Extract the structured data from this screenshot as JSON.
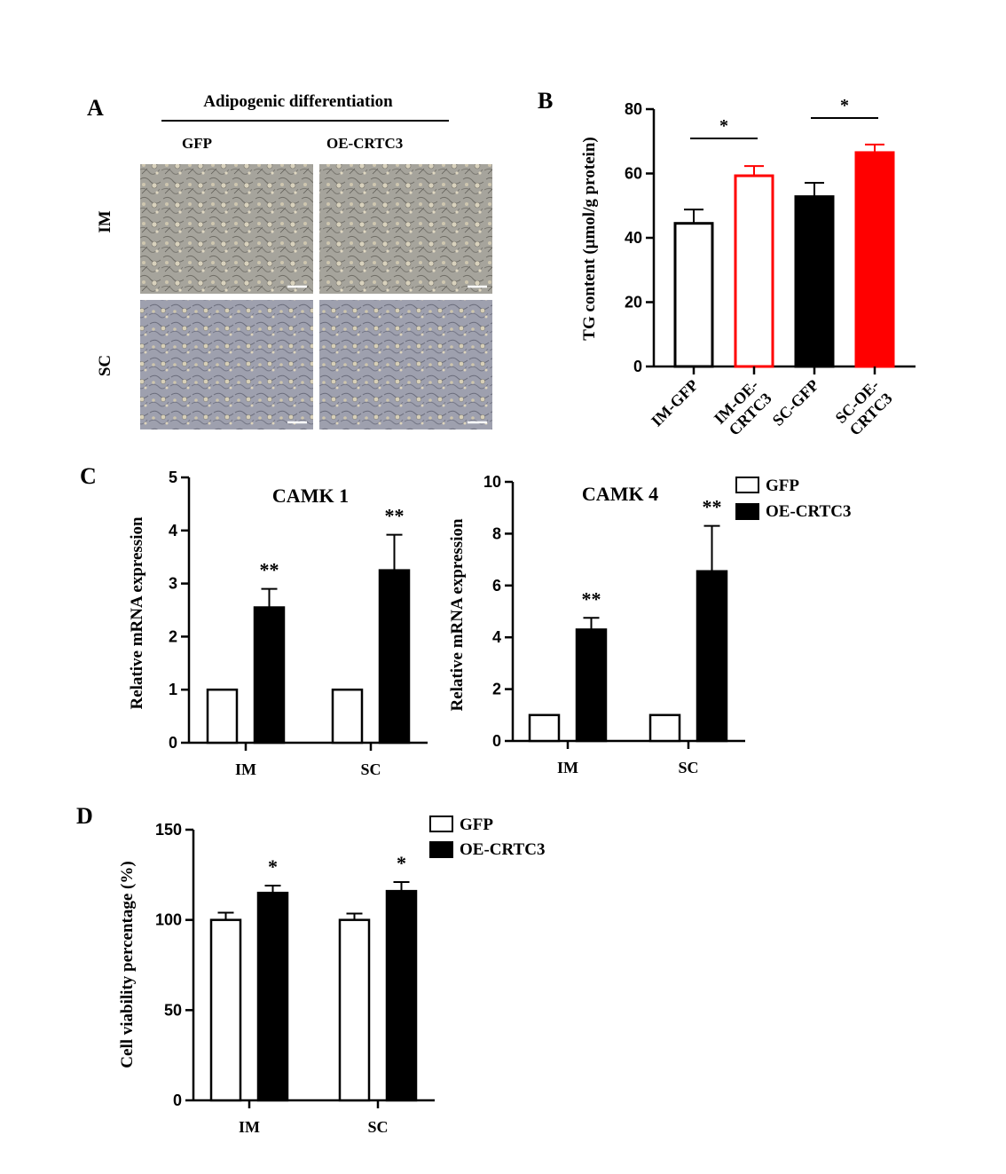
{
  "panel_labels": [
    "A",
    "B",
    "C",
    "D"
  ],
  "panel_a": {
    "header": "Adipogenic differentiation",
    "columns": [
      "GFP",
      "OE-CRTC3"
    ],
    "rows": [
      "IM",
      "SC"
    ]
  },
  "colors": {
    "black": "#000000",
    "red": "#ff0000",
    "micro_base": "#a9a79f",
    "micro_blue": "#9598aa"
  },
  "chart_data": [
    {
      "id": "B",
      "type": "bar",
      "categories": [
        "IM-GFP",
        "IM-OE-CRTC3",
        "SC-GFP",
        "SC-OE-CRTC3"
      ],
      "category_lines": [
        [
          "IM-GFP"
        ],
        [
          "IM-OE-",
          "CRTC3"
        ],
        [
          "SC-GFP"
        ],
        [
          "SC-OE-",
          "CRTC3"
        ]
      ],
      "values": [
        44.5,
        59.3,
        52.8,
        66.5
      ],
      "errors": [
        4.3,
        3.0,
        4.3,
        2.5
      ],
      "bar_styles": [
        "black-outline",
        "red-outline",
        "black-fill",
        "red-fill"
      ],
      "ylabel": "TG content (μmol/g protein)",
      "ylim": [
        0,
        80
      ],
      "yticks": [
        0,
        20,
        40,
        60,
        80
      ],
      "significance": [
        {
          "between": [
            0,
            1
          ],
          "label": "*"
        },
        {
          "between": [
            2,
            3
          ],
          "label": "*"
        }
      ]
    },
    {
      "id": "C1",
      "type": "bar",
      "title": "CAMK 1",
      "categories": [
        "IM",
        "SC"
      ],
      "series": [
        {
          "name": "GFP",
          "values": [
            1.0,
            1.0
          ],
          "errors": [
            0,
            0
          ]
        },
        {
          "name": "OE-CRTC3",
          "values": [
            2.55,
            3.25
          ],
          "errors": [
            0.35,
            0.67
          ]
        }
      ],
      "ylabel": "Relative mRNA expression",
      "ylim": [
        0,
        5
      ],
      "yticks": [
        0,
        1,
        2,
        3,
        4,
        5
      ],
      "annotations": [
        "**",
        "**"
      ]
    },
    {
      "id": "C2",
      "type": "bar",
      "title": "CAMK 4",
      "categories": [
        "IM",
        "SC"
      ],
      "series": [
        {
          "name": "GFP",
          "values": [
            1.0,
            1.0
          ],
          "errors": [
            0,
            0
          ]
        },
        {
          "name": "OE-CRTC3",
          "values": [
            4.3,
            6.55
          ],
          "errors": [
            0.45,
            1.75
          ]
        }
      ],
      "ylabel": "Relative mRNA expression",
      "ylim": [
        0,
        10
      ],
      "yticks": [
        0,
        2,
        4,
        6,
        8,
        10
      ],
      "annotations": [
        "**",
        "**"
      ]
    },
    {
      "id": "D",
      "type": "bar",
      "categories": [
        "IM",
        "SC"
      ],
      "series": [
        {
          "name": "GFP",
          "values": [
            100,
            100
          ],
          "errors": [
            4,
            3.5
          ]
        },
        {
          "name": "OE-CRTC3",
          "values": [
            115,
            116
          ],
          "errors": [
            4,
            5
          ]
        }
      ],
      "ylabel": "Cell viability percentage (%)",
      "ylim": [
        0,
        150
      ],
      "yticks": [
        0,
        50,
        100,
        150
      ],
      "annotations": [
        "*",
        "*"
      ]
    }
  ],
  "legend_c": {
    "items": [
      "GFP",
      "OE-CRTC3"
    ]
  },
  "legend_d": {
    "items": [
      "GFP",
      "OE-CRTC3"
    ]
  }
}
